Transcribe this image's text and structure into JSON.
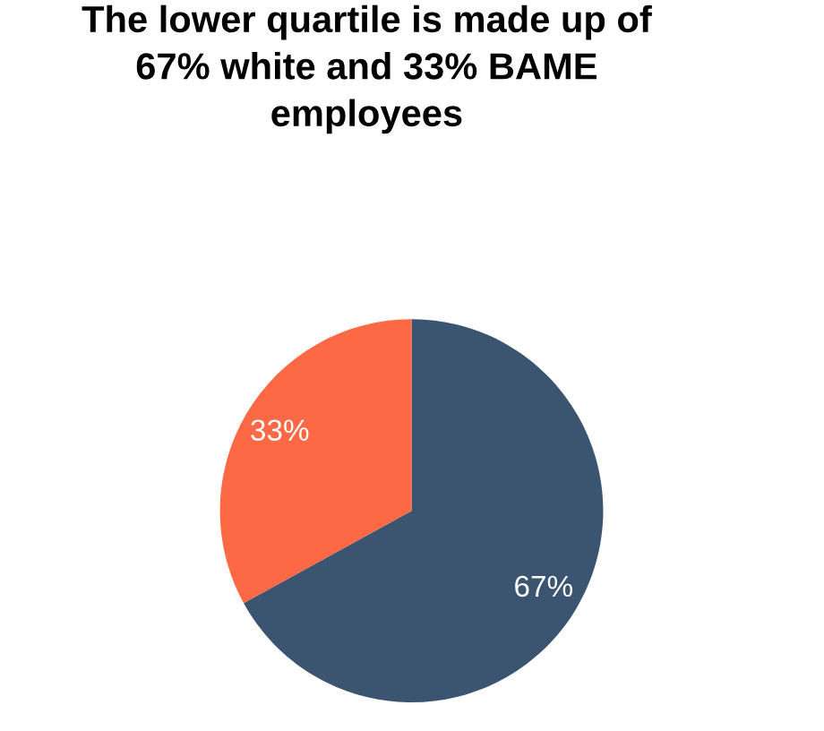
{
  "chart_data": {
    "type": "pie",
    "title": "The lower quartile is made up of\n67% white and 33% BAME\nemployees",
    "categories": [
      null,
      null
    ],
    "values": [
      67,
      33
    ],
    "colors": [
      "#3b5470",
      "#fd6845"
    ],
    "value_labels": [
      "67%",
      "33%"
    ]
  }
}
